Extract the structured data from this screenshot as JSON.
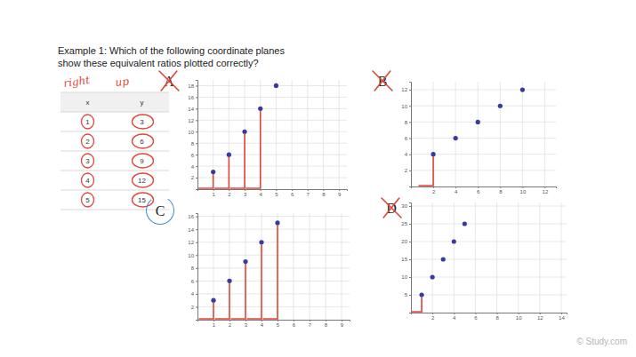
{
  "question": [
    "Example 1: Which of the following coordinate planes",
    "show these equivalent ratios plotted correctly?"
  ],
  "handwriting": [
    "right",
    "up"
  ],
  "table": {
    "header": [
      "x",
      "y"
    ],
    "rows": [
      [
        1,
        3
      ],
      [
        2,
        6
      ],
      [
        3,
        9
      ],
      [
        4,
        12
      ],
      [
        5,
        15
      ]
    ]
  },
  "watermark": "© Study.com",
  "chart_data": [
    {
      "type": "scatter",
      "title": "A",
      "x": [
        1,
        2,
        3,
        4,
        5
      ],
      "values": [
        3,
        6,
        10,
        14,
        18
      ],
      "color": "#3a3a9e",
      "marker": "circle",
      "xlim": [
        0,
        9.5
      ],
      "xticks": [
        1,
        2,
        3,
        4,
        5,
        6,
        7,
        8,
        9
      ],
      "ylim": [
        0,
        19
      ],
      "yticks": [
        2,
        4,
        6,
        8,
        10,
        12,
        14,
        16,
        18
      ],
      "grid": true
    },
    {
      "type": "scatter",
      "title": "B",
      "x": [
        2,
        4,
        6,
        8,
        10
      ],
      "values": [
        4,
        6,
        8,
        10,
        12
      ],
      "color": "#3a3a9e",
      "marker": "circle",
      "xlim": [
        0,
        13
      ],
      "xticks": [
        2,
        4,
        6,
        8,
        10,
        12
      ],
      "ylim": [
        0,
        13
      ],
      "yticks": [
        2,
        4,
        6,
        8,
        10,
        12
      ],
      "grid": true
    },
    {
      "type": "scatter",
      "title": "C",
      "x": [
        1,
        2,
        3,
        4,
        5
      ],
      "values": [
        3,
        6,
        9,
        12,
        15
      ],
      "color": "#3a3a9e",
      "marker": "circle",
      "xlim": [
        0,
        9.5
      ],
      "xticks": [
        1,
        2,
        3,
        4,
        5,
        6,
        7,
        8,
        9
      ],
      "ylim": [
        0,
        16.5
      ],
      "yticks": [
        2,
        4,
        6,
        8,
        10,
        12,
        14,
        16
      ],
      "grid": true
    },
    {
      "type": "scatter",
      "title": "D",
      "x": [
        1,
        2,
        3,
        4,
        5
      ],
      "values": [
        5,
        10,
        15,
        20,
        25
      ],
      "color": "#3a3a9e",
      "marker": "circle",
      "xlim": [
        0,
        14.5
      ],
      "xticks": [
        2,
        4,
        6,
        8,
        10,
        12,
        14
      ],
      "ylim": [
        0,
        31
      ],
      "yticks": [
        5,
        10,
        15,
        20,
        25,
        30
      ],
      "grid": true
    }
  ]
}
